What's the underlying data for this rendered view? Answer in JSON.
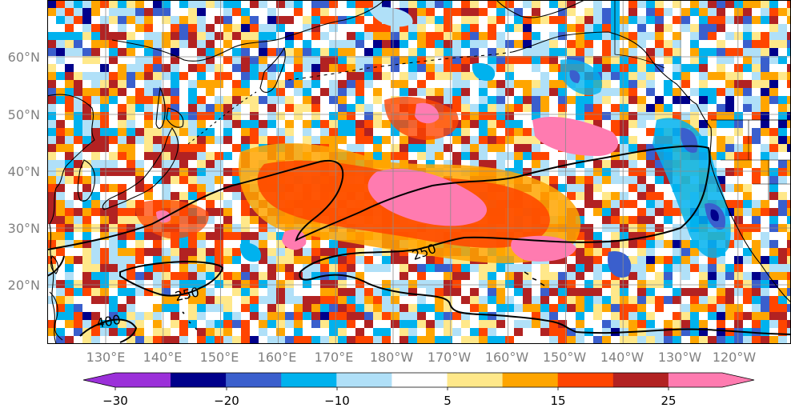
{
  "map": {
    "lat_labels": [
      "60°N",
      "50°N",
      "40°N",
      "30°N",
      "20°N"
    ],
    "lon_labels": [
      "130°E",
      "140°E",
      "150°E",
      "160°E",
      "170°E",
      "180°W",
      "170°W",
      "160°W",
      "150°W",
      "140°W",
      "130°W",
      "120°W"
    ],
    "contour_labels": [
      "250",
      "250",
      "400"
    ],
    "colorbar": {
      "tick_labels": [
        "−30",
        "−20",
        "−10",
        "5",
        "15",
        "25"
      ],
      "colors": [
        "#9b30d9",
        "#00008b",
        "#3a5fcd",
        "#00b2ee",
        "#b0e0f8",
        "#ffffff",
        "#ffe88a",
        "#ffa500",
        "#ff4500",
        "#b22222",
        "#ff7bb0"
      ]
    },
    "land_color": "#000000",
    "grid_color": "#8c8c8c"
  }
}
